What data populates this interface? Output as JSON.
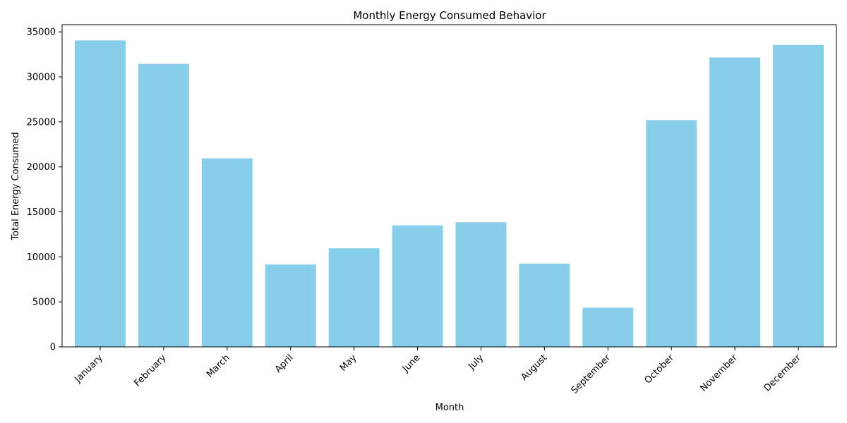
{
  "chart_data": {
    "type": "bar",
    "title": "Monthly Energy Consumed Behavior",
    "xlabel": "Month",
    "ylabel": "Total Energy Consumed",
    "categories": [
      "January",
      "February",
      "March",
      "April",
      "May",
      "June",
      "July",
      "August",
      "September",
      "October",
      "November",
      "December"
    ],
    "values": [
      34050,
      31450,
      20950,
      9150,
      10950,
      13500,
      13850,
      9250,
      4350,
      25200,
      32150,
      33550
    ],
    "ylim": [
      0,
      35800
    ],
    "yticks": [
      0,
      5000,
      10000,
      15000,
      20000,
      25000,
      30000,
      35000
    ],
    "grid": false,
    "bar_color": "#87CEEB"
  }
}
